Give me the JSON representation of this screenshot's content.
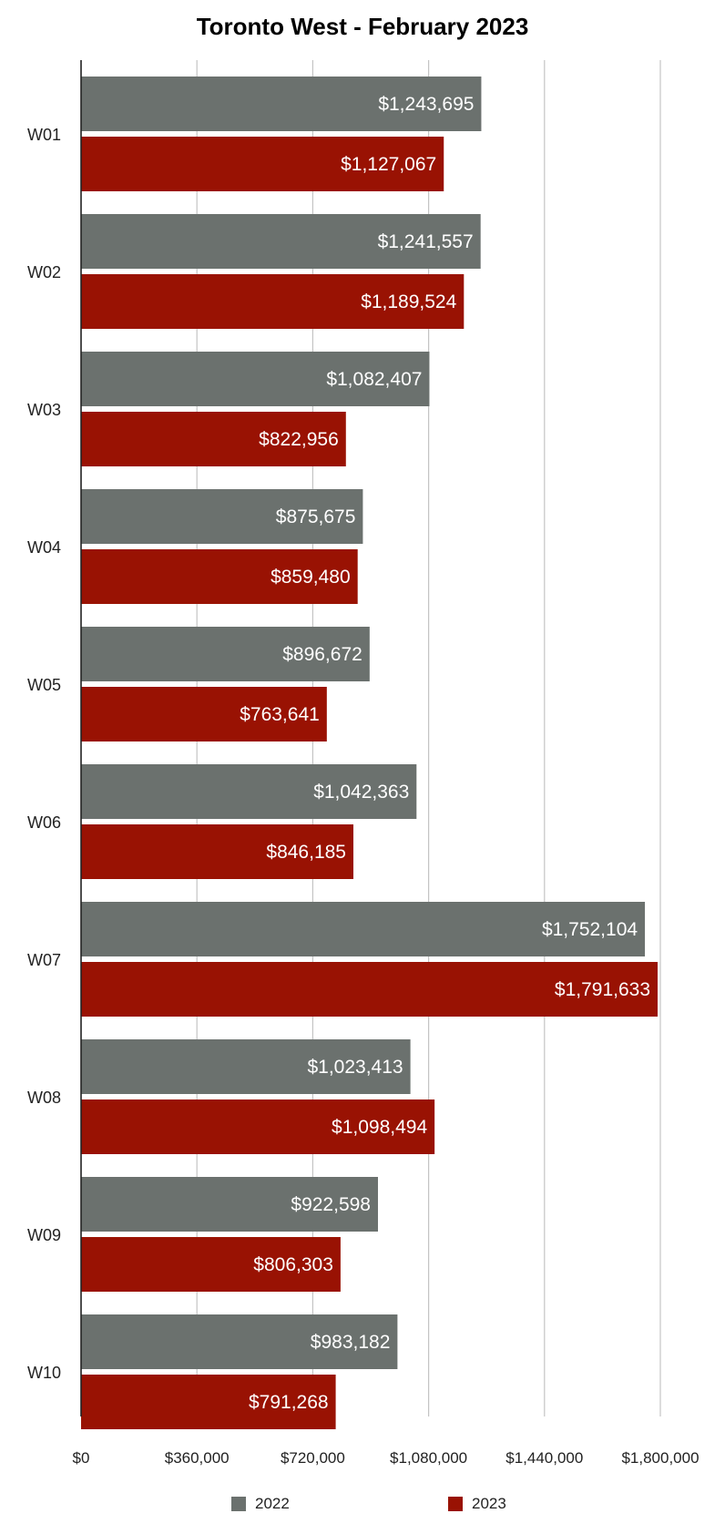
{
  "chart_data": {
    "type": "bar",
    "orientation": "horizontal",
    "title": "Toronto West - February 2023",
    "categories": [
      "W01",
      "W02",
      "W03",
      "W04",
      "W05",
      "W06",
      "W07",
      "W08",
      "W09",
      "W10"
    ],
    "series": [
      {
        "name": "2022",
        "color": "#6b716e",
        "values": [
          1243695,
          1241557,
          1082407,
          875675,
          896672,
          1042363,
          1752104,
          1023413,
          922598,
          983182
        ],
        "labels": [
          "$1,243,695",
          "$1,241,557",
          "$1,082,407",
          "$875,675",
          "$896,672",
          "$1,042,363",
          "$1,752,104",
          "$1,023,413",
          "$922,598",
          "$983,182"
        ]
      },
      {
        "name": "2023",
        "color": "#991203",
        "values": [
          1127067,
          1189524,
          822956,
          859480,
          763641,
          846185,
          1791633,
          1098494,
          806303,
          791268
        ],
        "labels": [
          "$1,127,067",
          "$1,189,524",
          "$822,956",
          "$859,480",
          "$763,641",
          "$846,185",
          "$1,791,633",
          "$1,098,494",
          "$806,303",
          "$791,268"
        ]
      }
    ],
    "xlim": [
      0,
      1800000
    ],
    "xticks": [
      0,
      360000,
      720000,
      1080000,
      1440000,
      1800000
    ],
    "xtick_labels": [
      "$0",
      "$360,000",
      "$720,000",
      "$1,080,000",
      "$1,440,000",
      "$1,800,000"
    ],
    "grid": true,
    "legend_position": "bottom",
    "label_color": "#ffffff",
    "grid_color": "#c4c4c4"
  }
}
